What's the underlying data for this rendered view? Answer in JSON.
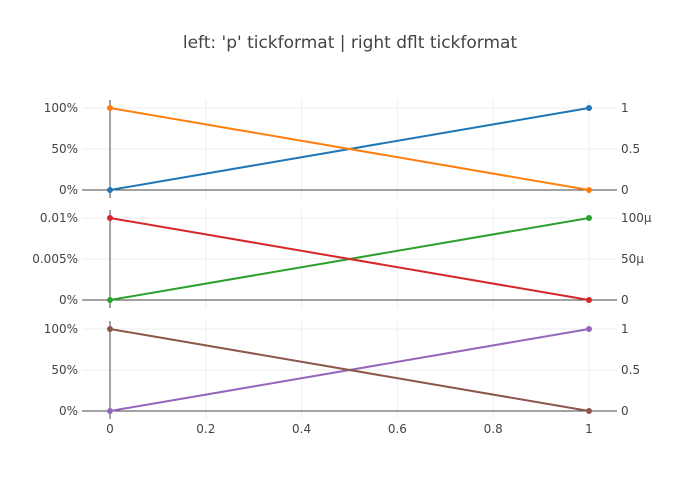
{
  "chart_data": {
    "type": "line",
    "title": "left: 'p' tickformat | right dflt tickformat",
    "x_ticks": [
      "0",
      "0.2",
      "0.4",
      "0.6",
      "0.8",
      "1"
    ],
    "xlim": [
      0,
      1
    ],
    "grid": true,
    "legend": "none",
    "subplots": [
      {
        "left_ticks": [
          "0%",
          "50%",
          "100%"
        ],
        "right_ticks": [
          "0",
          "0.5",
          "1"
        ],
        "ylim": [
          0,
          1
        ],
        "series": [
          {
            "x": [
              0,
              1
            ],
            "y": [
              0,
              1
            ],
            "color": "#1f77b4"
          },
          {
            "x": [
              0,
              1
            ],
            "y": [
              1,
              0
            ],
            "color": "#ff7f0e"
          }
        ]
      },
      {
        "left_ticks": [
          "0%",
          "0.005%",
          "0.01%"
        ],
        "right_ticks": [
          "0",
          "50μ",
          "100μ"
        ],
        "ylim": [
          0,
          0.0001
        ],
        "series": [
          {
            "x": [
              0,
              1
            ],
            "y": [
              0,
              0.0001
            ],
            "color": "#2ca02c"
          },
          {
            "x": [
              0,
              1
            ],
            "y": [
              0.0001,
              0
            ],
            "color": "#d62728"
          }
        ]
      },
      {
        "left_ticks": [
          "0%",
          "50%",
          "100%"
        ],
        "right_ticks": [
          "0",
          "0.5",
          "1"
        ],
        "ylim": [
          0,
          1
        ],
        "series": [
          {
            "x": [
              0,
              1
            ],
            "y": [
              0,
              1
            ],
            "color": "#9467bd"
          },
          {
            "x": [
              0,
              1
            ],
            "y": [
              1,
              0
            ],
            "color": "#8c564b"
          }
        ]
      }
    ]
  }
}
